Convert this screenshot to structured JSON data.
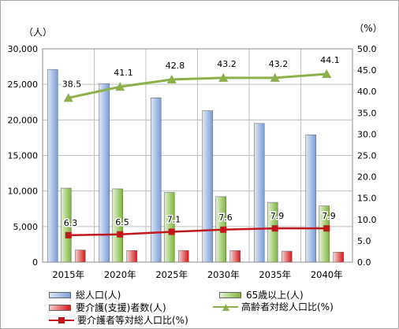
{
  "chart_data": {
    "type": "bar",
    "categories": [
      "2015年",
      "2020年",
      "2025年",
      "2030年",
      "2035年",
      "2040年"
    ],
    "left_axis": {
      "unit_label": "（人）",
      "min": 0,
      "max": 30000,
      "step": 5000,
      "ticks": [
        "0",
        "5,000",
        "10,000",
        "15,000",
        "20,000",
        "25,000",
        "30,000"
      ]
    },
    "right_axis": {
      "unit_label": "（%）",
      "min": 0,
      "max": 50,
      "step": 5,
      "ticks": [
        "0.0",
        "5.0",
        "10.0",
        "15.0",
        "20.0",
        "25.0",
        "30.0",
        "35.0",
        "40.0",
        "45.0",
        "50.0"
      ]
    },
    "grid": true,
    "legend_position": "bottom",
    "bar_series": [
      {
        "name": "総人口(人)",
        "values": [
          27100,
          25100,
          23100,
          21300,
          19500,
          17900
        ],
        "color": "#8faadc"
      },
      {
        "name": "65歳以上(人)",
        "values": [
          10400,
          10300,
          9800,
          9200,
          8400,
          7900
        ],
        "color": "#92c353"
      },
      {
        "name": "要介護(支援)者数(人)",
        "values": [
          1700,
          1630,
          1640,
          1620,
          1540,
          1410
        ],
        "color": "#e02020"
      }
    ],
    "line_series": [
      {
        "name": "高齢者対総人口比(%)",
        "values": [
          38.5,
          41.1,
          42.8,
          43.2,
          43.2,
          44.1
        ],
        "labels": [
          "38.5",
          "41.1",
          "42.8",
          "43.2",
          "43.2",
          "44.1"
        ],
        "color": "#8cb04a",
        "marker": "triangle"
      },
      {
        "name": "要介護者等対総人口比(%)",
        "values": [
          6.3,
          6.5,
          7.1,
          7.6,
          7.9,
          7.9
        ],
        "labels": [
          "6.3",
          "6.5",
          "7.1",
          "7.6",
          "7.9",
          "7.9"
        ],
        "color": "#c0161c",
        "marker": "square"
      }
    ]
  }
}
